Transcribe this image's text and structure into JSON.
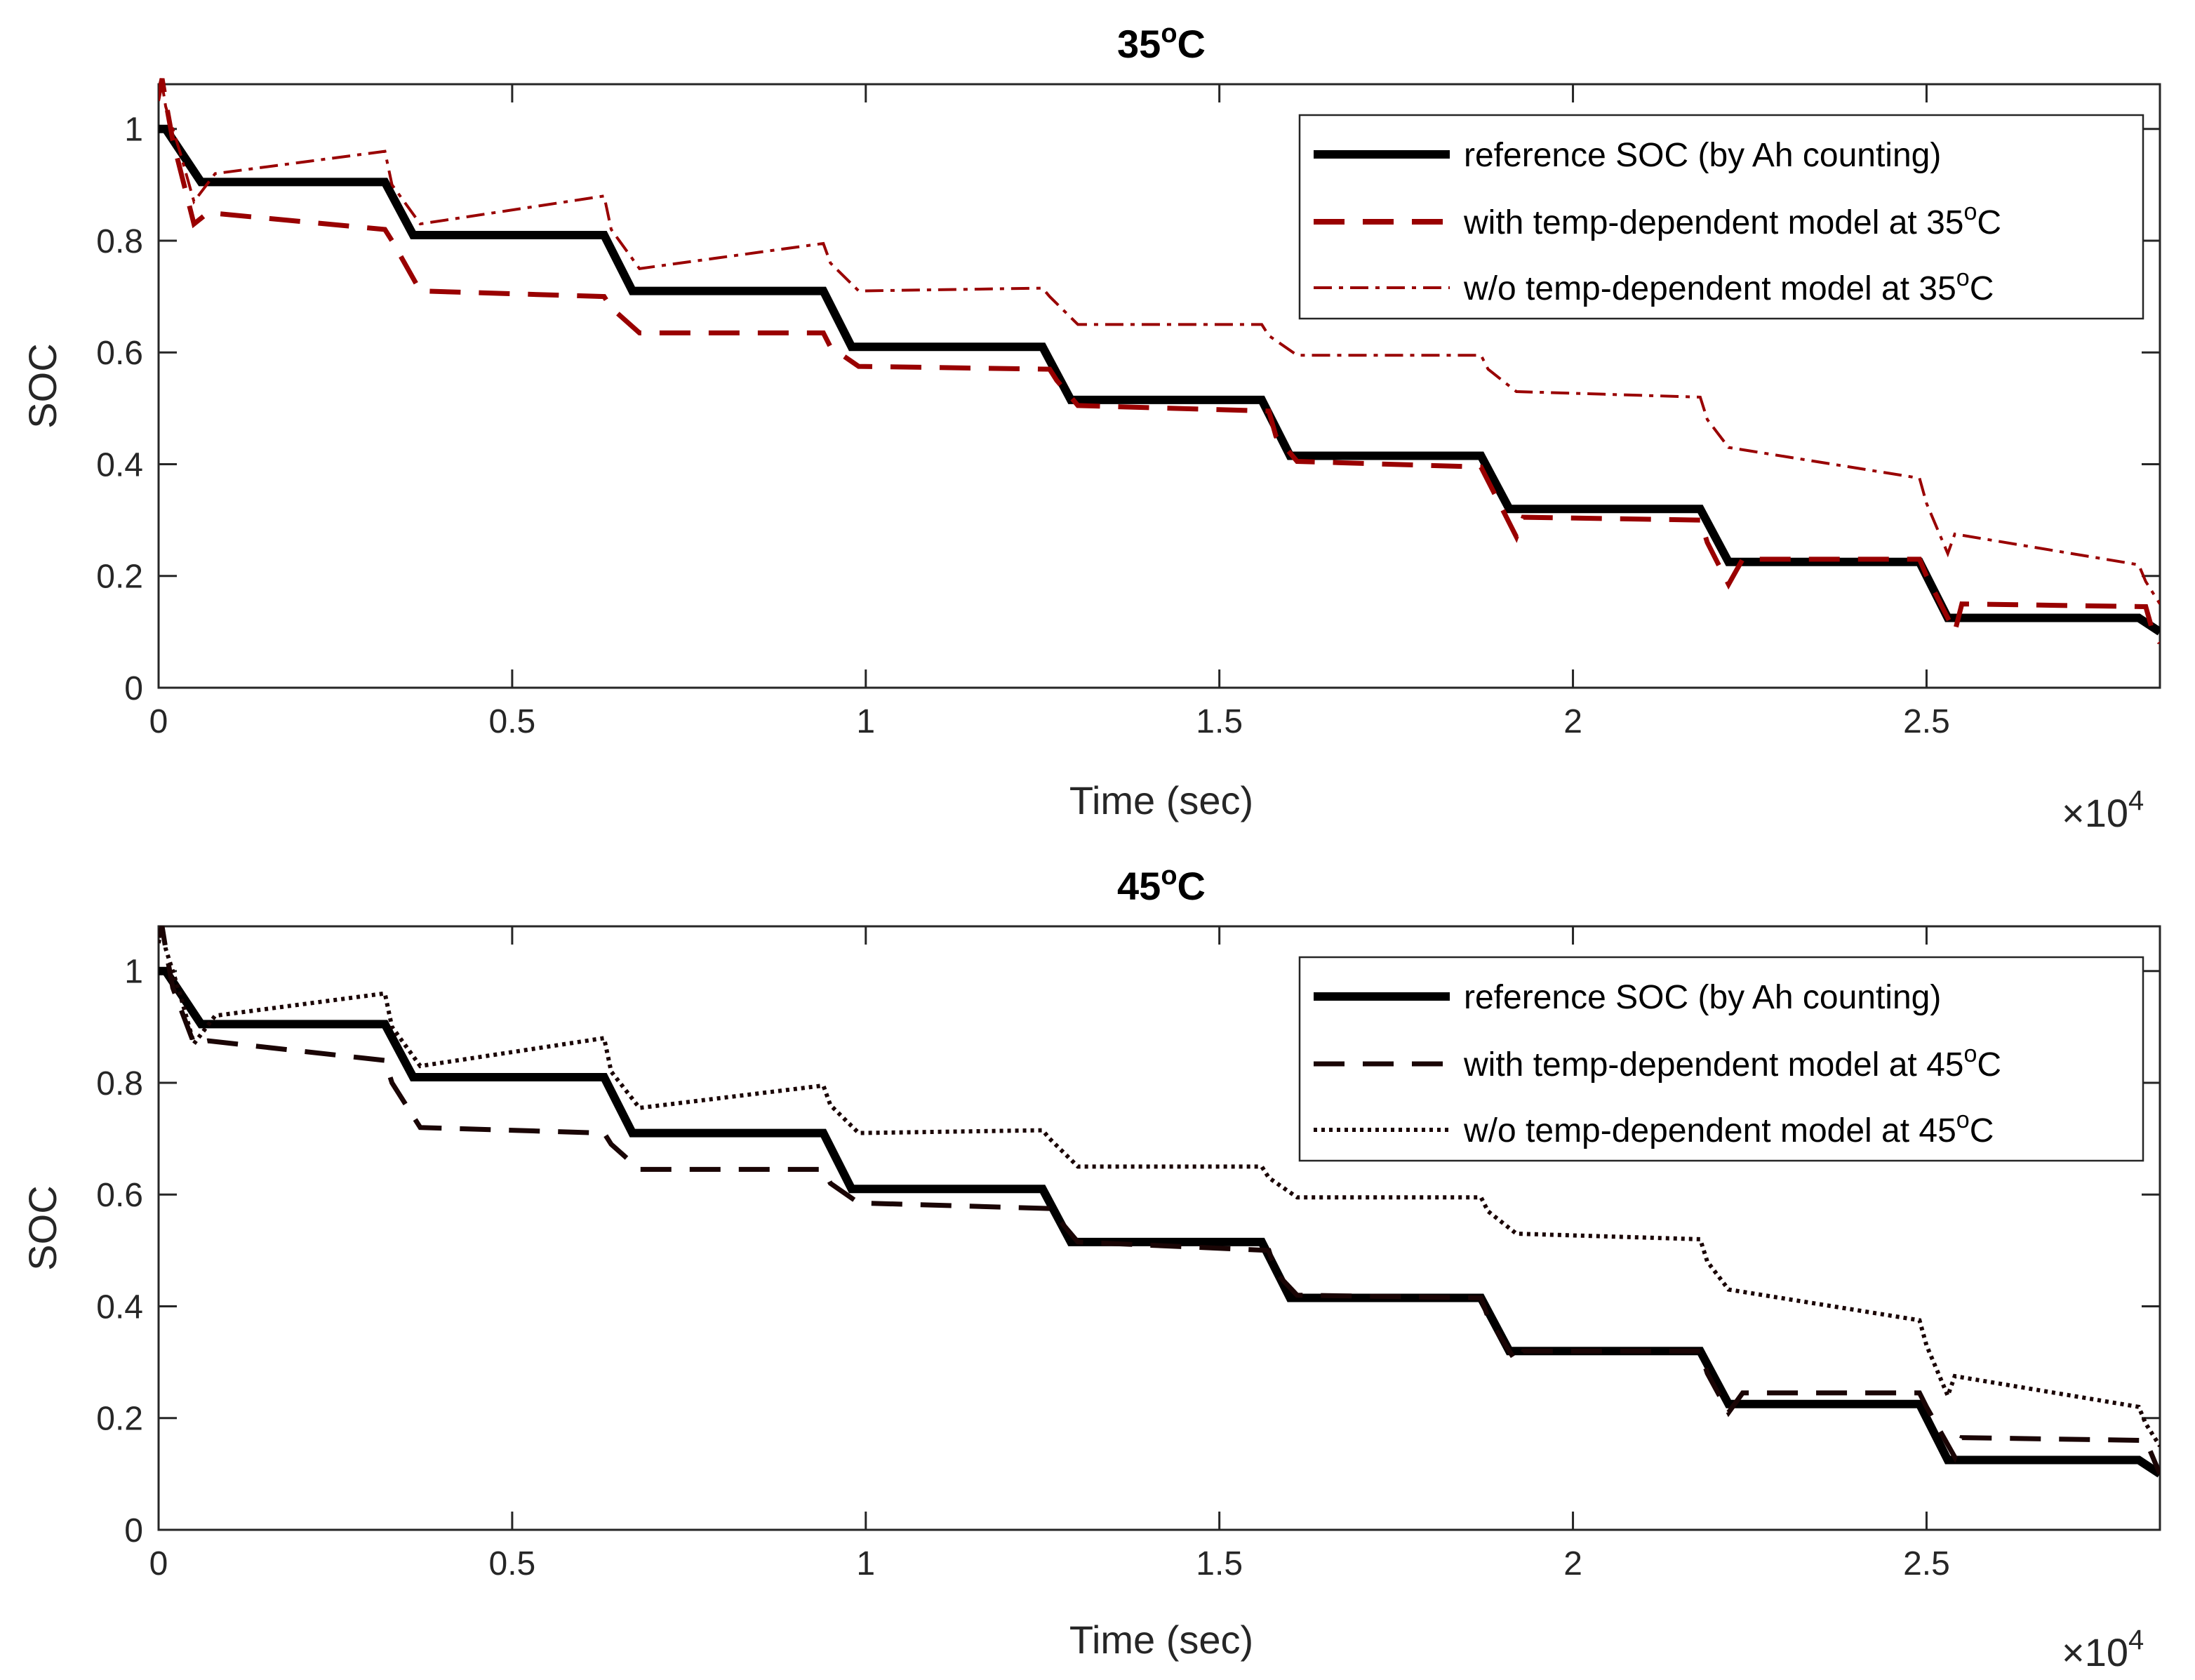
{
  "chart_data": [
    {
      "type": "line",
      "title": "35",
      "title_sup": "o",
      "title_unit": "C",
      "xlabel": "Time (sec)",
      "ylabel": "SOC",
      "x_multiplier": "×10",
      "x_multiplier_exp": "4",
      "xlim": [
        0,
        2.83
      ],
      "ylim": [
        0,
        1.08
      ],
      "xticks": [
        0,
        0.5,
        1,
        1.5,
        2,
        2.5
      ],
      "xtick_labels": [
        "0",
        "0.5",
        "1",
        "1.5",
        "2",
        "2.5"
      ],
      "yticks": [
        0,
        0.2,
        0.4,
        0.6,
        0.8,
        1
      ],
      "ytick_labels": [
        "0",
        "0.2",
        "0.4",
        "0.6",
        "0.8",
        "1"
      ],
      "legend_position": "top-right",
      "series": [
        {
          "name": "reference SOC (by Ah counting)",
          "color": "#000000",
          "style": "solid",
          "x": [
            0,
            0.01,
            0.06,
            0.32,
            0.36,
            0.63,
            0.67,
            0.94,
            0.98,
            1.25,
            1.29,
            1.56,
            1.6,
            1.87,
            1.91,
            2.18,
            2.22,
            2.49,
            2.53,
            2.8,
            2.83
          ],
          "y": [
            1.0,
            1.0,
            0.905,
            0.905,
            0.81,
            0.81,
            0.71,
            0.71,
            0.61,
            0.61,
            0.515,
            0.515,
            0.415,
            0.415,
            0.32,
            0.32,
            0.225,
            0.225,
            0.125,
            0.125,
            0.1
          ]
        },
        {
          "name": "with temp-dependent model at 35",
          "name_sup": "o",
          "name_unit": "C",
          "color": "#990000",
          "style": "dash",
          "x": [
            0,
            0.005,
            0.01,
            0.02,
            0.05,
            0.07,
            0.32,
            0.33,
            0.37,
            0.63,
            0.64,
            0.68,
            0.94,
            0.95,
            0.99,
            1.26,
            1.27,
            1.3,
            1.57,
            1.58,
            1.61,
            1.87,
            1.88,
            1.92,
            1.93,
            2.18,
            2.19,
            2.22,
            2.24,
            2.49,
            2.5,
            2.54,
            2.55,
            2.81,
            2.82,
            2.83
          ],
          "y": [
            1.06,
            1.09,
            1.05,
            0.98,
            0.83,
            0.85,
            0.82,
            0.8,
            0.71,
            0.7,
            0.68,
            0.635,
            0.635,
            0.61,
            0.575,
            0.57,
            0.55,
            0.505,
            0.495,
            0.45,
            0.405,
            0.395,
            0.37,
            0.27,
            0.305,
            0.3,
            0.26,
            0.185,
            0.23,
            0.23,
            0.2,
            0.1,
            0.15,
            0.145,
            0.1,
            0.08
          ]
        },
        {
          "name": "w/o temp-dependent model at 35",
          "name_sup": "o",
          "name_unit": "C",
          "color": "#990000",
          "style": "dashdot",
          "x": [
            0,
            0.005,
            0.01,
            0.03,
            0.05,
            0.08,
            0.32,
            0.33,
            0.37,
            0.63,
            0.64,
            0.68,
            0.94,
            0.95,
            0.99,
            1.25,
            1.26,
            1.3,
            1.56,
            1.57,
            1.61,
            1.87,
            1.88,
            1.92,
            2.18,
            2.19,
            2.22,
            2.49,
            2.5,
            2.53,
            2.54,
            2.8,
            2.81,
            2.83
          ],
          "y": [
            1.05,
            1.08,
            1.04,
            0.96,
            0.87,
            0.92,
            0.96,
            0.9,
            0.83,
            0.88,
            0.82,
            0.75,
            0.795,
            0.76,
            0.71,
            0.715,
            0.7,
            0.65,
            0.65,
            0.63,
            0.595,
            0.595,
            0.57,
            0.53,
            0.52,
            0.48,
            0.43,
            0.375,
            0.33,
            0.24,
            0.275,
            0.22,
            0.19,
            0.15
          ]
        }
      ]
    },
    {
      "type": "line",
      "title": "45",
      "title_sup": "o",
      "title_unit": "C",
      "xlabel": "Time (sec)",
      "ylabel": "SOC",
      "x_multiplier": "×10",
      "x_multiplier_exp": "4",
      "xlim": [
        0,
        2.83
      ],
      "ylim": [
        0,
        1.08
      ],
      "xticks": [
        0,
        0.5,
        1,
        1.5,
        2,
        2.5
      ],
      "xtick_labels": [
        "0",
        "0.5",
        "1",
        "1.5",
        "2",
        "2.5"
      ],
      "yticks": [
        0,
        0.2,
        0.4,
        0.6,
        0.8,
        1
      ],
      "ytick_labels": [
        "0",
        "0.2",
        "0.4",
        "0.6",
        "0.8",
        "1"
      ],
      "legend_position": "top-right",
      "series": [
        {
          "name": "reference SOC (by Ah counting)",
          "color": "#000000",
          "style": "solid",
          "x": [
            0,
            0.01,
            0.06,
            0.32,
            0.36,
            0.63,
            0.67,
            0.94,
            0.98,
            1.25,
            1.29,
            1.56,
            1.6,
            1.87,
            1.91,
            2.18,
            2.22,
            2.49,
            2.53,
            2.8,
            2.83
          ],
          "y": [
            1.0,
            1.0,
            0.905,
            0.905,
            0.81,
            0.81,
            0.71,
            0.71,
            0.61,
            0.61,
            0.515,
            0.515,
            0.415,
            0.415,
            0.32,
            0.32,
            0.225,
            0.225,
            0.125,
            0.125,
            0.1
          ]
        },
        {
          "name": "with temp-dependent model at 45",
          "name_sup": "o",
          "name_unit": "C",
          "color": "#1a0505",
          "style": "dash",
          "x": [
            0,
            0.005,
            0.01,
            0.02,
            0.05,
            0.07,
            0.32,
            0.33,
            0.37,
            0.63,
            0.64,
            0.68,
            0.94,
            0.95,
            0.99,
            1.26,
            1.27,
            1.3,
            1.57,
            1.58,
            1.61,
            1.87,
            1.88,
            1.92,
            1.93,
            2.18,
            2.19,
            2.22,
            2.24,
            2.49,
            2.5,
            2.54,
            2.55,
            2.81,
            2.82,
            2.83
          ],
          "y": [
            1.06,
            1.08,
            1.04,
            0.97,
            0.87,
            0.875,
            0.84,
            0.8,
            0.72,
            0.71,
            0.69,
            0.645,
            0.645,
            0.62,
            0.585,
            0.575,
            0.56,
            0.515,
            0.5,
            0.46,
            0.42,
            0.415,
            0.38,
            0.3,
            0.32,
            0.32,
            0.28,
            0.21,
            0.245,
            0.245,
            0.22,
            0.13,
            0.165,
            0.16,
            0.13,
            0.1
          ]
        },
        {
          "name": "w/o temp-dependent model at 45",
          "name_sup": "o",
          "name_unit": "C",
          "color": "#1a0505",
          "style": "dotted",
          "x": [
            0,
            0.005,
            0.01,
            0.03,
            0.05,
            0.08,
            0.32,
            0.33,
            0.37,
            0.63,
            0.64,
            0.68,
            0.94,
            0.95,
            0.99,
            1.25,
            1.26,
            1.3,
            1.56,
            1.57,
            1.61,
            1.87,
            1.88,
            1.92,
            2.18,
            2.19,
            2.22,
            2.49,
            2.5,
            2.53,
            2.54,
            2.8,
            2.81,
            2.83
          ],
          "y": [
            1.05,
            1.08,
            1.04,
            0.96,
            0.87,
            0.92,
            0.96,
            0.9,
            0.83,
            0.88,
            0.82,
            0.755,
            0.795,
            0.76,
            0.71,
            0.715,
            0.7,
            0.65,
            0.65,
            0.63,
            0.595,
            0.595,
            0.57,
            0.53,
            0.52,
            0.48,
            0.43,
            0.375,
            0.33,
            0.24,
            0.275,
            0.22,
            0.19,
            0.15
          ]
        }
      ]
    }
  ]
}
